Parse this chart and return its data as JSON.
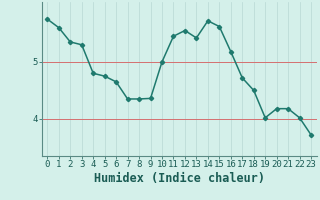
{
  "xlabel": "Humidex (Indice chaleur)",
  "x": [
    0,
    1,
    2,
    3,
    4,
    5,
    6,
    7,
    8,
    9,
    10,
    11,
    12,
    13,
    14,
    15,
    16,
    17,
    18,
    19,
    20,
    21,
    22,
    23
  ],
  "y": [
    5.75,
    5.6,
    5.35,
    5.3,
    4.8,
    4.75,
    4.65,
    4.35,
    4.35,
    4.36,
    5.0,
    5.45,
    5.55,
    5.42,
    5.72,
    5.62,
    5.18,
    4.72,
    4.5,
    4.02,
    4.18,
    4.18,
    4.02,
    3.72
  ],
  "line_color": "#1f7a6e",
  "marker": "D",
  "marker_size": 2.2,
  "bg_color": "#d4f0ea",
  "vgrid_color": "#b8d8d4",
  "hline_color": "#d47070",
  "hline_y": [
    4,
    5
  ],
  "yticks": [
    4,
    5
  ],
  "ylim": [
    3.35,
    6.05
  ],
  "xlim": [
    -0.5,
    23.5
  ],
  "tick_label_fontsize": 6.5,
  "xlabel_fontsize": 8.5,
  "linewidth": 1.1
}
